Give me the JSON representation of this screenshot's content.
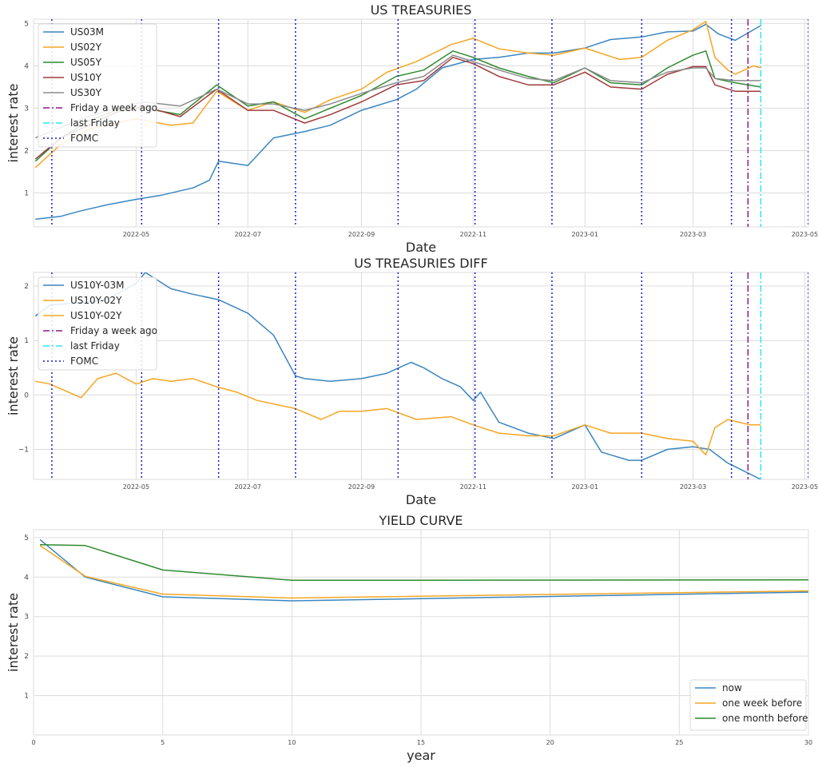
{
  "colors": {
    "US03M": "#3a86c0",
    "US02Y": "#f5a623",
    "US05Y": "#2f8a2f",
    "US10Y": "#a23b3b",
    "US30Y": "#8c8c8c",
    "friday_week_ago": "#8b1a8b",
    "last_friday": "#2ee6f0",
    "fomc": "#1a1acc"
  },
  "chart_data": [
    {
      "type": "line",
      "title": "US TREASURIES",
      "xlabel": "Date",
      "ylabel": "interest rate",
      "x_type": "date",
      "xlim": [
        "2022-03-06",
        "2023-05-03"
      ],
      "ylim": [
        0.2,
        5.1
      ],
      "xticks": [
        "2022-05",
        "2022-07",
        "2022-09",
        "2022-11",
        "2023-01",
        "2023-03",
        "2023-05"
      ],
      "yticks": [
        1,
        2,
        3,
        4,
        5
      ],
      "grid": true,
      "legend_position": "upper left",
      "series": [
        {
          "name": "US03M",
          "x": [
            "2022-03-07",
            "2022-03-21",
            "2022-04-01",
            "2022-04-15",
            "2022-05-01",
            "2022-05-15",
            "2022-06-01",
            "2022-06-10",
            "2022-06-15",
            "2022-07-01",
            "2022-07-15",
            "2022-08-01",
            "2022-08-15",
            "2022-09-01",
            "2022-09-20",
            "2022-10-01",
            "2022-10-15",
            "2022-11-01",
            "2022-11-15",
            "2022-12-01",
            "2022-12-15",
            "2023-01-01",
            "2023-01-15",
            "2023-02-01",
            "2023-02-15",
            "2023-03-01",
            "2023-03-08",
            "2023-03-15",
            "2023-03-24",
            "2023-04-07"
          ],
          "values": [
            0.38,
            0.45,
            0.58,
            0.72,
            0.85,
            0.95,
            1.12,
            1.3,
            1.75,
            1.65,
            2.3,
            2.45,
            2.6,
            2.95,
            3.2,
            3.45,
            3.95,
            4.15,
            4.2,
            4.3,
            4.3,
            4.42,
            4.62,
            4.68,
            4.8,
            4.82,
            4.98,
            4.75,
            4.6,
            4.95
          ]
        },
        {
          "name": "US02Y",
          "x": [
            "2022-03-07",
            "2022-03-21",
            "2022-04-05",
            "2022-04-15",
            "2022-05-01",
            "2022-05-20",
            "2022-06-01",
            "2022-06-14",
            "2022-07-01",
            "2022-07-15",
            "2022-08-01",
            "2022-08-15",
            "2022-09-01",
            "2022-09-15",
            "2022-10-01",
            "2022-10-20",
            "2022-11-01",
            "2022-11-15",
            "2022-12-01",
            "2022-12-15",
            "2023-01-01",
            "2023-01-20",
            "2023-02-01",
            "2023-02-15",
            "2023-03-01",
            "2023-03-08",
            "2023-03-13",
            "2023-03-20",
            "2023-03-24",
            "2023-04-03",
            "2023-04-07"
          ],
          "values": [
            1.6,
            2.15,
            2.5,
            2.6,
            2.75,
            2.6,
            2.65,
            3.4,
            2.95,
            3.15,
            2.9,
            3.2,
            3.45,
            3.85,
            4.1,
            4.5,
            4.65,
            4.4,
            4.3,
            4.25,
            4.42,
            4.15,
            4.2,
            4.6,
            4.85,
            5.05,
            4.2,
            3.9,
            3.8,
            4.0,
            3.95
          ]
        },
        {
          "name": "US05Y",
          "x": [
            "2022-03-07",
            "2022-03-21",
            "2022-04-05",
            "2022-04-20",
            "2022-05-05",
            "2022-05-25",
            "2022-06-14",
            "2022-07-01",
            "2022-07-15",
            "2022-08-01",
            "2022-08-15",
            "2022-09-01",
            "2022-09-20",
            "2022-10-05",
            "2022-10-21",
            "2022-11-01",
            "2022-11-15",
            "2022-12-01",
            "2022-12-15",
            "2023-01-01",
            "2023-01-15",
            "2023-02-01",
            "2023-02-15",
            "2023-03-01",
            "2023-03-08",
            "2023-03-13",
            "2023-03-24",
            "2023-04-07"
          ],
          "values": [
            1.75,
            2.3,
            2.7,
            2.95,
            3.0,
            2.85,
            3.55,
            3.05,
            3.15,
            2.75,
            3.0,
            3.3,
            3.75,
            3.9,
            4.35,
            4.2,
            3.95,
            3.75,
            3.6,
            3.95,
            3.6,
            3.55,
            3.95,
            4.25,
            4.35,
            3.7,
            3.6,
            3.5
          ]
        },
        {
          "name": "US10Y",
          "x": [
            "2022-03-07",
            "2022-03-21",
            "2022-04-05",
            "2022-04-20",
            "2022-05-05",
            "2022-05-25",
            "2022-06-14",
            "2022-07-01",
            "2022-07-15",
            "2022-08-01",
            "2022-08-15",
            "2022-09-01",
            "2022-09-20",
            "2022-10-05",
            "2022-10-21",
            "2022-11-01",
            "2022-11-15",
            "2022-12-01",
            "2022-12-15",
            "2023-01-01",
            "2023-01-15",
            "2023-02-01",
            "2023-02-15",
            "2023-03-01",
            "2023-03-08",
            "2023-03-13",
            "2023-03-24",
            "2023-04-07"
          ],
          "values": [
            1.8,
            2.3,
            2.6,
            2.9,
            3.05,
            2.8,
            3.45,
            2.95,
            2.95,
            2.65,
            2.85,
            3.15,
            3.55,
            3.65,
            4.2,
            4.05,
            3.75,
            3.55,
            3.55,
            3.85,
            3.5,
            3.45,
            3.8,
            3.98,
            3.98,
            3.55,
            3.4,
            3.4
          ]
        },
        {
          "name": "US30Y",
          "x": [
            "2022-03-07",
            "2022-03-21",
            "2022-04-05",
            "2022-04-20",
            "2022-05-05",
            "2022-05-25",
            "2022-06-14",
            "2022-07-01",
            "2022-07-15",
            "2022-08-01",
            "2022-08-15",
            "2022-09-01",
            "2022-09-20",
            "2022-10-05",
            "2022-10-21",
            "2022-11-01",
            "2022-11-15",
            "2022-12-01",
            "2022-12-15",
            "2023-01-01",
            "2023-01-15",
            "2023-02-01",
            "2023-02-15",
            "2023-03-01",
            "2023-03-08",
            "2023-03-13",
            "2023-03-24",
            "2023-04-07"
          ],
          "values": [
            2.3,
            2.55,
            2.8,
            3.0,
            3.15,
            3.05,
            3.45,
            3.1,
            3.1,
            2.95,
            3.1,
            3.35,
            3.6,
            3.75,
            4.25,
            4.1,
            3.9,
            3.7,
            3.65,
            3.95,
            3.65,
            3.6,
            3.85,
            3.95,
            3.95,
            3.7,
            3.65,
            3.65
          ]
        }
      ],
      "vlines": [
        {
          "name": "Friday a week ago",
          "x": "2023-03-31",
          "style": "dashdot"
        },
        {
          "name": "last Friday",
          "x": "2023-04-07",
          "style": "dashdot"
        },
        {
          "name": "FOMC",
          "x": [
            "2022-03-16",
            "2022-05-04",
            "2022-06-15",
            "2022-07-27",
            "2022-09-21",
            "2022-11-02",
            "2022-12-14",
            "2023-02-01",
            "2023-03-22",
            "2023-05-03"
          ],
          "style": "dotted"
        }
      ],
      "legend": [
        "US03M",
        "US02Y",
        "US05Y",
        "US10Y",
        "US30Y",
        "Friday a week ago",
        "last Friday",
        "FOMC"
      ]
    },
    {
      "type": "line",
      "title": "US TREASURIES DIFF",
      "xlabel": "Date",
      "ylabel": "interest rate",
      "x_type": "date",
      "xlim": [
        "2022-03-06",
        "2023-05-03"
      ],
      "ylim": [
        -1.55,
        2.25
      ],
      "xticks": [
        "2022-05",
        "2022-07",
        "2022-09",
        "2022-11",
        "2023-01",
        "2023-03",
        "2023-05"
      ],
      "yticks": [
        -1,
        0,
        1,
        2
      ],
      "grid": true,
      "legend_position": "upper left",
      "series": [
        {
          "name": "US10Y-03M",
          "x": [
            "2022-03-07",
            "2022-03-15",
            "2022-04-01",
            "2022-04-15",
            "2022-05-01",
            "2022-05-06",
            "2022-05-20",
            "2022-06-01",
            "2022-06-15",
            "2022-07-01",
            "2022-07-15",
            "2022-07-27",
            "2022-08-01",
            "2022-08-15",
            "2022-09-01",
            "2022-09-15",
            "2022-09-28",
            "2022-10-05",
            "2022-10-15",
            "2022-10-25",
            "2022-11-01",
            "2022-11-05",
            "2022-11-15",
            "2022-12-01",
            "2022-12-15",
            "2023-01-01",
            "2023-01-10",
            "2023-01-25",
            "2023-02-01",
            "2023-02-15",
            "2023-03-01",
            "2023-03-10",
            "2023-03-20",
            "2023-04-07"
          ],
          "values": [
            1.45,
            1.65,
            1.7,
            1.75,
            2.05,
            2.25,
            1.95,
            1.85,
            1.75,
            1.5,
            1.1,
            0.35,
            0.3,
            0.25,
            0.3,
            0.4,
            0.6,
            0.5,
            0.3,
            0.15,
            -0.1,
            0.05,
            -0.5,
            -0.7,
            -0.8,
            -0.55,
            -1.05,
            -1.2,
            -1.2,
            -1.0,
            -0.95,
            -1.0,
            -1.25,
            -1.55
          ]
        },
        {
          "name": "US10Y-02Y",
          "x": [
            "2022-03-07",
            "2022-03-15",
            "2022-04-01",
            "2022-04-10",
            "2022-04-20",
            "2022-05-01",
            "2022-05-10",
            "2022-05-20",
            "2022-06-01",
            "2022-06-14",
            "2022-06-25",
            "2022-07-06",
            "2022-07-27",
            "2022-08-10",
            "2022-08-20",
            "2022-09-01",
            "2022-09-15",
            "2022-10-01",
            "2022-10-20",
            "2022-11-01",
            "2022-11-15",
            "2022-12-01",
            "2022-12-15",
            "2023-01-01",
            "2023-01-15",
            "2023-02-01",
            "2023-02-15",
            "2023-03-01",
            "2023-03-08",
            "2023-03-13",
            "2023-03-20",
            "2023-04-01",
            "2023-04-07"
          ],
          "values": [
            0.25,
            0.2,
            -0.05,
            0.3,
            0.4,
            0.2,
            0.3,
            0.25,
            0.3,
            0.15,
            0.05,
            -0.1,
            -0.25,
            -0.45,
            -0.3,
            -0.3,
            -0.25,
            -0.45,
            -0.4,
            -0.55,
            -0.7,
            -0.75,
            -0.75,
            -0.55,
            -0.7,
            -0.7,
            -0.8,
            -0.85,
            -1.1,
            -0.6,
            -0.45,
            -0.55,
            -0.55
          ]
        }
      ],
      "vlines": [
        {
          "name": "Friday a week ago",
          "x": "2023-03-31",
          "style": "dashdot"
        },
        {
          "name": "last Friday",
          "x": "2023-04-07",
          "style": "dashdot"
        },
        {
          "name": "FOMC",
          "x": [
            "2022-03-16",
            "2022-05-04",
            "2022-06-15",
            "2022-07-27",
            "2022-09-21",
            "2022-11-02",
            "2022-12-14",
            "2023-02-01",
            "2023-03-22",
            "2023-05-03"
          ],
          "style": "dotted"
        }
      ],
      "legend": [
        "US10Y-03M",
        "US10Y-02Y",
        "US10Y-02Y",
        "Friday a week ago",
        "last Friday",
        "FOMC"
      ]
    },
    {
      "type": "line",
      "title": "YIELD CURVE",
      "xlabel": "year",
      "ylabel": "interest rate",
      "xlim": [
        0,
        30
      ],
      "ylim": [
        0,
        5.2
      ],
      "xticks": [
        0,
        5,
        10,
        15,
        20,
        25,
        30
      ],
      "yticks": [
        1,
        2,
        3,
        4,
        5
      ],
      "grid": true,
      "legend_position": "lower right",
      "x": [
        0.25,
        2,
        5,
        10,
        30
      ],
      "series": [
        {
          "name": "now",
          "values": [
            4.95,
            4.0,
            3.5,
            3.4,
            3.62
          ]
        },
        {
          "name": "one week before",
          "values": [
            4.8,
            4.02,
            3.57,
            3.47,
            3.65
          ]
        },
        {
          "name": "one month before",
          "values": [
            4.82,
            4.8,
            4.18,
            3.92,
            3.93
          ]
        }
      ],
      "legend": [
        "now",
        "one week before",
        "one month before"
      ]
    }
  ]
}
